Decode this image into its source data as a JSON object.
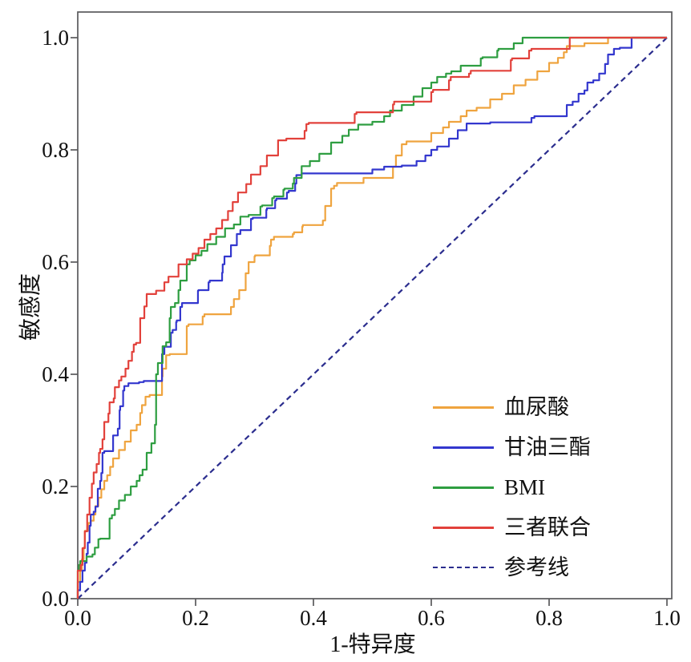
{
  "figure": {
    "background": "#ffffff",
    "frame_color": "#5a5a5c",
    "tick_color": "#5a5a5c",
    "text_color": "#111111"
  },
  "chart_data": {
    "type": "line",
    "subtype": "roc-curve",
    "title": "",
    "xlabel": "1-特异度",
    "ylabel": "敏感度",
    "xlim": [
      0,
      1
    ],
    "ylim": [
      0,
      1
    ],
    "grid": false,
    "legend_position": "lower right",
    "x_ticks": [
      "0.0",
      "0.2",
      "0.4",
      "0.6",
      "0.8",
      "1.0"
    ],
    "x_tick_values": [
      0,
      0.2,
      0.4,
      0.6,
      0.8,
      1.0
    ],
    "y_ticks": [
      "0.0",
      "0.2",
      "0.4",
      "0.6",
      "0.8",
      "1.0"
    ],
    "y_tick_values": [
      0,
      0.2,
      0.4,
      0.6,
      0.8,
      1.0
    ],
    "series": [
      {
        "id": "serum-uric-acid",
        "name": "血尿酸",
        "color": "#EFA43F",
        "style": "solid",
        "render": "step",
        "points": [
          [
            0,
            0
          ],
          [
            0.004,
            0.03
          ],
          [
            0.007,
            0.05
          ],
          [
            0.01,
            0.07
          ],
          [
            0.012,
            0.091
          ],
          [
            0.018,
            0.121
          ],
          [
            0.022,
            0.135
          ],
          [
            0.027,
            0.139
          ],
          [
            0.03,
            0.15
          ],
          [
            0.035,
            0.165
          ],
          [
            0.04,
            0.18
          ],
          [
            0.045,
            0.195
          ],
          [
            0.05,
            0.21
          ],
          [
            0.055,
            0.22
          ],
          [
            0.06,
            0.235
          ],
          [
            0.07,
            0.25
          ],
          [
            0.08,
            0.265
          ],
          [
            0.09,
            0.28
          ],
          [
            0.1,
            0.3
          ],
          [
            0.106,
            0.31
          ],
          [
            0.109,
            0.331
          ],
          [
            0.115,
            0.345
          ],
          [
            0.122,
            0.36
          ],
          [
            0.143,
            0.363
          ],
          [
            0.144,
            0.396
          ],
          [
            0.15,
            0.41
          ],
          [
            0.156,
            0.434
          ],
          [
            0.185,
            0.436
          ],
          [
            0.188,
            0.486
          ],
          [
            0.212,
            0.489
          ],
          [
            0.215,
            0.503
          ],
          [
            0.26,
            0.507
          ],
          [
            0.265,
            0.52
          ],
          [
            0.274,
            0.534
          ],
          [
            0.285,
            0.55
          ],
          [
            0.29,
            0.58
          ],
          [
            0.3,
            0.6
          ],
          [
            0.301,
            0.61
          ],
          [
            0.326,
            0.612
          ],
          [
            0.328,
            0.629
          ],
          [
            0.333,
            0.64
          ],
          [
            0.365,
            0.645
          ],
          [
            0.367,
            0.65
          ],
          [
            0.381,
            0.653
          ],
          [
            0.382,
            0.663
          ],
          [
            0.416,
            0.666
          ],
          [
            0.42,
            0.674
          ],
          [
            0.43,
            0.7
          ],
          [
            0.435,
            0.731
          ],
          [
            0.44,
            0.736
          ],
          [
            0.485,
            0.741
          ],
          [
            0.535,
            0.75
          ],
          [
            0.54,
            0.77
          ],
          [
            0.55,
            0.79
          ],
          [
            0.558,
            0.81
          ],
          [
            0.6,
            0.815
          ],
          [
            0.62,
            0.83
          ],
          [
            0.63,
            0.84
          ],
          [
            0.65,
            0.85
          ],
          [
            0.66,
            0.86
          ],
          [
            0.677,
            0.87
          ],
          [
            0.7,
            0.875
          ],
          [
            0.72,
            0.89
          ],
          [
            0.74,
            0.9
          ],
          [
            0.76,
            0.915
          ],
          [
            0.78,
            0.925
          ],
          [
            0.8,
            0.94
          ],
          [
            0.815,
            0.955
          ],
          [
            0.825,
            0.964
          ],
          [
            0.83,
            0.974
          ],
          [
            0.86,
            0.985
          ],
          [
            0.9,
            0.99
          ],
          [
            0.95,
            1
          ],
          [
            1,
            1
          ]
        ]
      },
      {
        "id": "triglyceride",
        "name": "甘油三酯",
        "color": "#3337CE",
        "style": "solid",
        "render": "step",
        "points": [
          [
            0,
            0
          ],
          [
            0.004,
            0.015
          ],
          [
            0.008,
            0.03
          ],
          [
            0.012,
            0.05
          ],
          [
            0.015,
            0.064
          ],
          [
            0.017,
            0.08
          ],
          [
            0.02,
            0.1
          ],
          [
            0.022,
            0.13
          ],
          [
            0.027,
            0.15
          ],
          [
            0.03,
            0.155
          ],
          [
            0.034,
            0.164
          ],
          [
            0.038,
            0.196
          ],
          [
            0.04,
            0.21
          ],
          [
            0.042,
            0.224
          ],
          [
            0.045,
            0.26
          ],
          [
            0.06,
            0.263
          ],
          [
            0.068,
            0.291
          ],
          [
            0.071,
            0.303
          ],
          [
            0.072,
            0.336
          ],
          [
            0.077,
            0.343
          ],
          [
            0.079,
            0.371
          ],
          [
            0.086,
            0.379
          ],
          [
            0.104,
            0.384
          ],
          [
            0.112,
            0.386
          ],
          [
            0.143,
            0.388
          ],
          [
            0.147,
            0.436
          ],
          [
            0.158,
            0.449
          ],
          [
            0.161,
            0.474
          ],
          [
            0.167,
            0.479
          ],
          [
            0.168,
            0.493
          ],
          [
            0.174,
            0.496
          ],
          [
            0.177,
            0.52
          ],
          [
            0.204,
            0.527
          ],
          [
            0.205,
            0.549
          ],
          [
            0.222,
            0.55
          ],
          [
            0.224,
            0.564
          ],
          [
            0.245,
            0.567
          ],
          [
            0.246,
            0.581
          ],
          [
            0.249,
            0.596
          ],
          [
            0.26,
            0.61
          ],
          [
            0.27,
            0.63
          ],
          [
            0.276,
            0.65
          ],
          [
            0.294,
            0.657
          ],
          [
            0.297,
            0.677
          ],
          [
            0.32,
            0.679
          ],
          [
            0.321,
            0.693
          ],
          [
            0.335,
            0.696
          ],
          [
            0.337,
            0.71
          ],
          [
            0.355,
            0.713
          ],
          [
            0.358,
            0.724
          ],
          [
            0.369,
            0.727
          ],
          [
            0.371,
            0.74
          ],
          [
            0.38,
            0.755
          ],
          [
            0.5,
            0.758
          ],
          [
            0.52,
            0.765
          ],
          [
            0.55,
            0.77
          ],
          [
            0.575,
            0.772
          ],
          [
            0.59,
            0.78
          ],
          [
            0.6,
            0.79
          ],
          [
            0.61,
            0.8
          ],
          [
            0.63,
            0.806
          ],
          [
            0.645,
            0.82
          ],
          [
            0.66,
            0.835
          ],
          [
            0.7,
            0.847
          ],
          [
            0.77,
            0.849
          ],
          [
            0.775,
            0.857
          ],
          [
            0.83,
            0.86
          ],
          [
            0.84,
            0.88
          ],
          [
            0.85,
            0.886
          ],
          [
            0.86,
            0.9
          ],
          [
            0.865,
            0.906
          ],
          [
            0.875,
            0.92
          ],
          [
            0.885,
            0.924
          ],
          [
            0.895,
            0.936
          ],
          [
            0.9,
            0.953
          ],
          [
            0.91,
            0.97
          ],
          [
            0.92,
            0.98
          ],
          [
            0.94,
            0.982
          ],
          [
            0.947,
            1
          ],
          [
            1,
            1
          ]
        ]
      },
      {
        "id": "bmi",
        "name": "BMI",
        "color": "#2E9E41",
        "style": "solid",
        "render": "step",
        "points": [
          [
            0,
            0
          ],
          [
            0.002,
            0.05
          ],
          [
            0.004,
            0.06
          ],
          [
            0.015,
            0.067
          ],
          [
            0.025,
            0.075
          ],
          [
            0.029,
            0.079
          ],
          [
            0.035,
            0.091
          ],
          [
            0.038,
            0.106
          ],
          [
            0.054,
            0.107
          ],
          [
            0.058,
            0.143
          ],
          [
            0.063,
            0.149
          ],
          [
            0.07,
            0.16
          ],
          [
            0.08,
            0.175
          ],
          [
            0.09,
            0.185
          ],
          [
            0.1,
            0.2
          ],
          [
            0.105,
            0.21
          ],
          [
            0.11,
            0.22
          ],
          [
            0.117,
            0.23
          ],
          [
            0.125,
            0.26
          ],
          [
            0.131,
            0.277
          ],
          [
            0.133,
            0.31
          ],
          [
            0.136,
            0.4
          ],
          [
            0.144,
            0.42
          ],
          [
            0.15,
            0.45
          ],
          [
            0.156,
            0.457
          ],
          [
            0.158,
            0.5
          ],
          [
            0.165,
            0.52
          ],
          [
            0.171,
            0.527
          ],
          [
            0.174,
            0.55
          ],
          [
            0.185,
            0.567
          ],
          [
            0.19,
            0.596
          ],
          [
            0.2,
            0.603
          ],
          [
            0.21,
            0.612
          ],
          [
            0.22,
            0.62
          ],
          [
            0.235,
            0.632
          ],
          [
            0.25,
            0.645
          ],
          [
            0.265,
            0.66
          ],
          [
            0.276,
            0.667
          ],
          [
            0.29,
            0.681
          ],
          [
            0.31,
            0.684
          ],
          [
            0.313,
            0.699
          ],
          [
            0.33,
            0.701
          ],
          [
            0.333,
            0.714
          ],
          [
            0.349,
            0.717
          ],
          [
            0.351,
            0.729
          ],
          [
            0.365,
            0.731
          ],
          [
            0.367,
            0.74
          ],
          [
            0.38,
            0.75
          ],
          [
            0.394,
            0.771
          ],
          [
            0.41,
            0.78
          ],
          [
            0.43,
            0.793
          ],
          [
            0.449,
            0.813
          ],
          [
            0.46,
            0.825
          ],
          [
            0.476,
            0.836
          ],
          [
            0.5,
            0.845
          ],
          [
            0.52,
            0.85
          ],
          [
            0.53,
            0.86
          ],
          [
            0.55,
            0.87
          ],
          [
            0.57,
            0.88
          ],
          [
            0.585,
            0.895
          ],
          [
            0.6,
            0.91
          ],
          [
            0.61,
            0.92
          ],
          [
            0.625,
            0.93
          ],
          [
            0.634,
            0.936
          ],
          [
            0.65,
            0.94
          ],
          [
            0.684,
            0.95
          ],
          [
            0.687,
            0.963
          ],
          [
            0.712,
            0.965
          ],
          [
            0.714,
            0.977
          ],
          [
            0.74,
            0.98
          ],
          [
            0.755,
            0.99
          ],
          [
            0.765,
            1
          ],
          [
            1,
            1
          ]
        ]
      },
      {
        "id": "three-combined",
        "name": "三者联合",
        "color": "#E2413B",
        "style": "solid",
        "render": "step",
        "points": [
          [
            0,
            0
          ],
          [
            0.005,
            0.05
          ],
          [
            0.008,
            0.06
          ],
          [
            0.012,
            0.09
          ],
          [
            0.016,
            0.12
          ],
          [
            0.02,
            0.15
          ],
          [
            0.024,
            0.18
          ],
          [
            0.027,
            0.205
          ],
          [
            0.032,
            0.225
          ],
          [
            0.036,
            0.24
          ],
          [
            0.038,
            0.26
          ],
          [
            0.042,
            0.267
          ],
          [
            0.045,
            0.284
          ],
          [
            0.052,
            0.315
          ],
          [
            0.054,
            0.33
          ],
          [
            0.061,
            0.35
          ],
          [
            0.063,
            0.357
          ],
          [
            0.07,
            0.377
          ],
          [
            0.074,
            0.389
          ],
          [
            0.081,
            0.396
          ],
          [
            0.086,
            0.41
          ],
          [
            0.092,
            0.424
          ],
          [
            0.095,
            0.44
          ],
          [
            0.099,
            0.453
          ],
          [
            0.106,
            0.456
          ],
          [
            0.113,
            0.5
          ],
          [
            0.117,
            0.521
          ],
          [
            0.133,
            0.543
          ],
          [
            0.147,
            0.549
          ],
          [
            0.154,
            0.564
          ],
          [
            0.171,
            0.574
          ],
          [
            0.185,
            0.596
          ],
          [
            0.195,
            0.605
          ],
          [
            0.205,
            0.615
          ],
          [
            0.215,
            0.625
          ],
          [
            0.225,
            0.64
          ],
          [
            0.235,
            0.65
          ],
          [
            0.245,
            0.66
          ],
          [
            0.255,
            0.675
          ],
          [
            0.263,
            0.691
          ],
          [
            0.272,
            0.707
          ],
          [
            0.286,
            0.724
          ],
          [
            0.294,
            0.739
          ],
          [
            0.31,
            0.756
          ],
          [
            0.321,
            0.771
          ],
          [
            0.34,
            0.79
          ],
          [
            0.354,
            0.817
          ],
          [
            0.385,
            0.82
          ],
          [
            0.388,
            0.834
          ],
          [
            0.392,
            0.846
          ],
          [
            0.47,
            0.848
          ],
          [
            0.473,
            0.864
          ],
          [
            0.535,
            0.867
          ],
          [
            0.537,
            0.881
          ],
          [
            0.6,
            0.886
          ],
          [
            0.603,
            0.903
          ],
          [
            0.63,
            0.907
          ],
          [
            0.633,
            0.924
          ],
          [
            0.664,
            0.93
          ],
          [
            0.667,
            0.936
          ],
          [
            0.735,
            0.941
          ],
          [
            0.737,
            0.96
          ],
          [
            0.766,
            0.963
          ],
          [
            0.77,
            0.977
          ],
          [
            0.835,
            0.98
          ],
          [
            0.84,
            1
          ],
          [
            1,
            1
          ]
        ]
      },
      {
        "id": "reference-line",
        "name": "参考线",
        "color": "#2B2D8E",
        "style": "dashed",
        "render": "line",
        "points": [
          [
            0,
            0
          ],
          [
            1,
            1
          ]
        ]
      }
    ]
  }
}
